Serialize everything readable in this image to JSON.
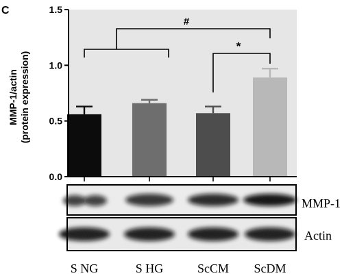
{
  "panel_label": "C",
  "chart_data": {
    "type": "bar",
    "ylabel_line1": "MMP-1/actin",
    "ylabel_line2": "(protein expression)",
    "xlabel": "",
    "ylim": [
      0,
      1.5
    ],
    "yticks": [
      "0.0",
      "0.5",
      "1.0",
      "1.5"
    ],
    "ytick_values": [
      0,
      0.5,
      1.0,
      1.5
    ],
    "categories": [
      "S NG",
      "S HG",
      "ScCM",
      "ScDM"
    ],
    "values": [
      0.56,
      0.66,
      0.57,
      0.89
    ],
    "errors": [
      0.07,
      0.03,
      0.06,
      0.08
    ],
    "bar_colors": [
      "#0c0c0c",
      "#6e6e6e",
      "#4d4d4d",
      "#b8b8b8"
    ],
    "plot_background": "#e6e6e6",
    "grid": false,
    "significance": [
      {
        "symbol": "#",
        "from": "S NG + S HG",
        "to": "ScDM"
      },
      {
        "symbol": "*",
        "from": "ScCM",
        "to": "ScDM"
      }
    ]
  },
  "blot": {
    "rows": [
      {
        "label": "MMP-1",
        "intensity": [
          0.8,
          0.85,
          0.9,
          1.0
        ]
      },
      {
        "label": "Actin",
        "intensity": [
          0.95,
          0.95,
          0.95,
          0.95
        ]
      }
    ]
  }
}
